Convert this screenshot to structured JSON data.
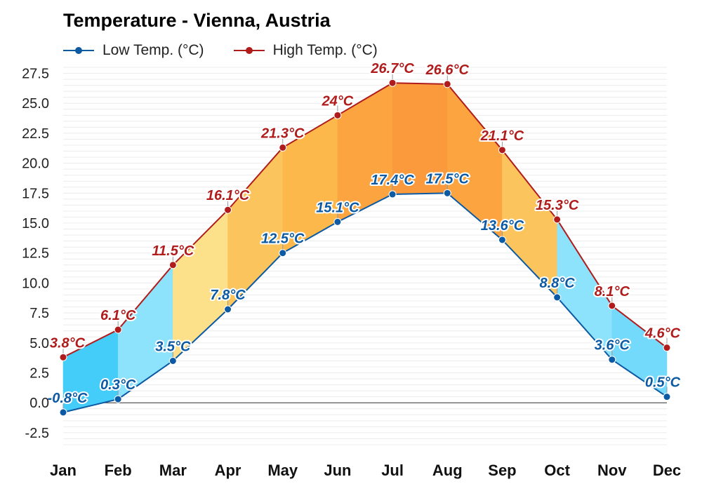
{
  "chart_data": {
    "type": "area",
    "title": "Temperature - Vienna, Austria",
    "categories": [
      "Jan",
      "Feb",
      "Mar",
      "Apr",
      "May",
      "Jun",
      "Jul",
      "Aug",
      "Sep",
      "Oct",
      "Nov",
      "Dec"
    ],
    "series": [
      {
        "name": "Low Temp. (°C)",
        "color": "#0b5aa3",
        "values": [
          -0.8,
          0.3,
          3.5,
          7.8,
          12.5,
          15.1,
          17.4,
          17.5,
          13.6,
          8.8,
          3.6,
          0.5
        ],
        "labels": [
          "-0.8°C",
          "0.3°C",
          "3.5°C",
          "7.8°C",
          "12.5°C",
          "15.1°C",
          "17.4°C",
          "17.5°C",
          "13.6°C",
          "8.8°C",
          "3.6°C",
          "0.5°C"
        ]
      },
      {
        "name": "High Temp. (°C)",
        "color": "#b01c1c",
        "values": [
          3.8,
          6.1,
          11.5,
          16.1,
          21.3,
          24,
          26.7,
          26.6,
          21.1,
          15.3,
          8.1,
          4.6
        ],
        "labels": [
          "3.8°C",
          "6.1°C",
          "11.5°C",
          "16.1°C",
          "21.3°C",
          "24°C",
          "26.7°C",
          "26.6°C",
          "21.1°C",
          "15.3°C",
          "8.1°C",
          "4.6°C"
        ]
      }
    ],
    "season_fill_colors": [
      "#45cdf9",
      "#8de3fc",
      "#fde08a",
      "#fcc45c",
      "#fcb84a",
      "#fca440",
      "#fa9a3c",
      "#fca440",
      "#fcc45c",
      "#8de3fc",
      "#74dafb",
      "#45cdf9"
    ],
    "y_ticks": [
      "27.5",
      "25.0",
      "22.5",
      "20.0",
      "17.5",
      "15.0",
      "12.5",
      "10.0",
      "7.5",
      "5.0",
      "2.5",
      "0.0",
      "-2.5"
    ],
    "ylim": [
      -3.5,
      28
    ],
    "grid": true,
    "legend_position": "top-left"
  }
}
